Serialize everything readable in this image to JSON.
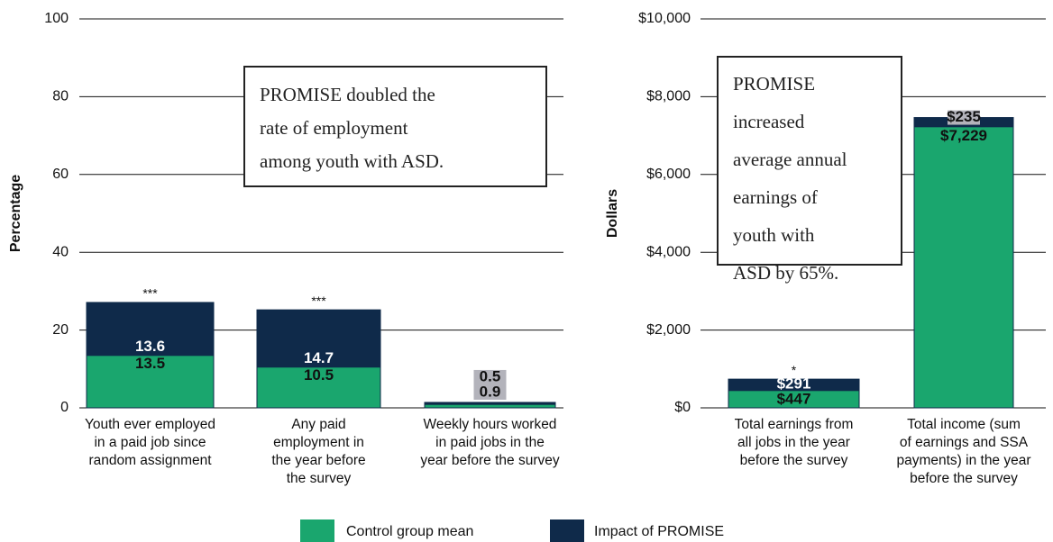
{
  "chart_data": [
    {
      "type": "bar",
      "stacked": true,
      "ylabel": "Percentage",
      "categories": [
        "Youth ever employed\nin a paid job since\nrandom assignment",
        "Any paid\nemployment in\nthe year before\nthe survey",
        "Weekly hours worked\nin paid jobs in the\nyear before the survey"
      ],
      "series": [
        {
          "name": "Control group mean",
          "color": "#1aa66e",
          "values": [
            13.5,
            10.5,
            0.9
          ]
        },
        {
          "name": "Impact of PROMISE",
          "color": "#0f2a4a",
          "values": [
            13.6,
            14.7,
            0.5
          ]
        }
      ],
      "significance": [
        "***",
        "***",
        null
      ],
      "annotation": "PROMISE doubled the\nrate of employment\namong youth with ASD.",
      "ylim": [
        0,
        100
      ],
      "yticks": [
        0,
        20,
        40,
        60,
        80,
        100
      ],
      "grid": true
    },
    {
      "type": "bar",
      "stacked": true,
      "ylabel": "Dollars",
      "categories": [
        "Total earnings from\nall jobs in the year\nbefore the survey",
        "Total income (sum\nof earnings and SSA\npayments) in the year\nbefore the survey"
      ],
      "series": [
        {
          "color": "#1aa66e",
          "values": [
            447,
            7229
          ],
          "value_labels": [
            "$447",
            "$7,229"
          ]
        },
        {
          "color": "#0f2a4a",
          "values": [
            291,
            235
          ],
          "value_labels": [
            "$291",
            "$235"
          ]
        }
      ],
      "significance": [
        "*",
        null
      ],
      "annotation": "PROMISE\nincreased\naverage annual\nearnings of\nyouth with\nASD by 65%.",
      "ylim": [
        0,
        10000
      ],
      "yticks": [
        {
          "value": 0,
          "label": "$0"
        },
        {
          "value": 2000,
          "label": "$2,000"
        },
        {
          "value": 4000,
          "label": "$4,000"
        },
        {
          "value": 6000,
          "label": "$6,000"
        },
        {
          "value": 8000,
          "label": "$8,000"
        },
        {
          "value": 10000,
          "label": "$10,000"
        }
      ],
      "grid": true
    }
  ]
}
